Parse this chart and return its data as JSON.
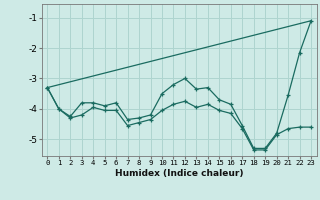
{
  "xlabel": "Humidex (Indice chaleur)",
  "background_color": "#ceeae6",
  "grid_color": "#aed4cf",
  "line_color": "#1a6b60",
  "xlim": [
    -0.5,
    23.5
  ],
  "ylim": [
    -5.55,
    -0.55
  ],
  "yticks": [
    -5,
    -4,
    -3,
    -2,
    -1
  ],
  "xticks": [
    0,
    1,
    2,
    3,
    4,
    5,
    6,
    7,
    8,
    9,
    10,
    11,
    12,
    13,
    14,
    15,
    16,
    17,
    18,
    19,
    20,
    21,
    22,
    23
  ],
  "series1_x": [
    0,
    1,
    2,
    3,
    4,
    5,
    6,
    7,
    8,
    9,
    10,
    11,
    12,
    13,
    14,
    15,
    16,
    17,
    18,
    19,
    20,
    21,
    22,
    23
  ],
  "series1_y": [
    -3.3,
    -4.0,
    -4.25,
    -3.8,
    -3.8,
    -3.9,
    -3.8,
    -4.35,
    -4.3,
    -4.2,
    -3.5,
    -3.2,
    -3.0,
    -3.35,
    -3.3,
    -3.7,
    -3.85,
    -4.55,
    -5.3,
    -5.3,
    -4.8,
    -3.55,
    -2.15,
    -1.1
  ],
  "series2_x": [
    0,
    1,
    2,
    3,
    4,
    5,
    6,
    7,
    8,
    9,
    10,
    11,
    12,
    13,
    14,
    15,
    16,
    17,
    18,
    19,
    20,
    21,
    22,
    23
  ],
  "series2_y": [
    -3.3,
    -4.0,
    -4.3,
    -4.2,
    -3.95,
    -4.05,
    -4.05,
    -4.55,
    -4.45,
    -4.35,
    -4.05,
    -3.85,
    -3.75,
    -3.95,
    -3.85,
    -4.05,
    -4.15,
    -4.65,
    -5.35,
    -5.35,
    -4.85,
    -4.65,
    -4.6,
    -4.6
  ],
  "series3_x": [
    0,
    23
  ],
  "series3_y": [
    -3.3,
    -1.1
  ]
}
